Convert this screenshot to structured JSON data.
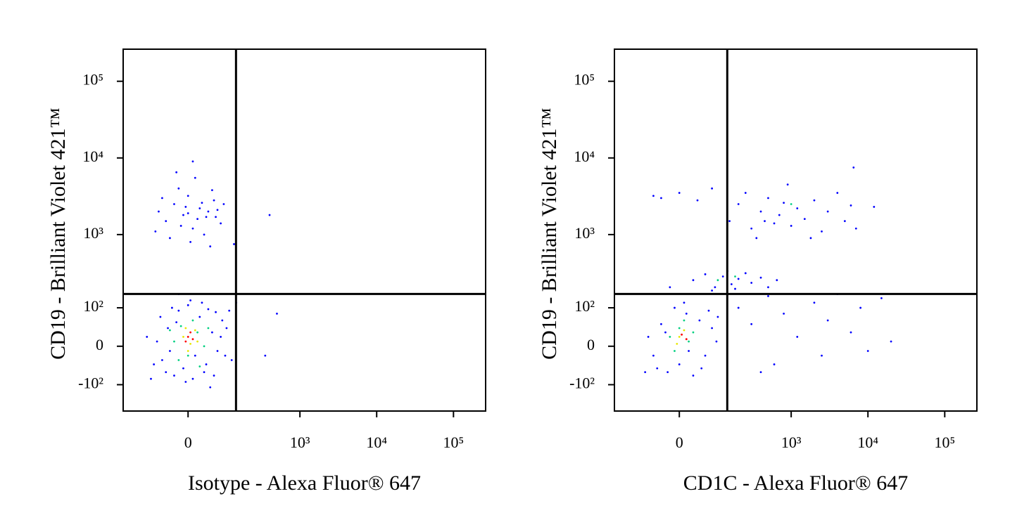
{
  "chart_data": [
    {
      "type": "scatter",
      "xlabel": "Isotype - Alexa Fluor® 647",
      "ylabel": "CD19 - Brilliant Violet 421™",
      "xlim": [
        -240,
        262144
      ],
      "ylim": [
        -240,
        262144
      ],
      "xticks": [
        0,
        {
          "value": 1000,
          "label": "10³"
        },
        {
          "value": 10000,
          "label": "10⁴"
        },
        {
          "value": 100000,
          "label": "10⁵"
        }
      ],
      "yticks": [
        {
          "value": -100,
          "label": "-10²"
        },
        0,
        {
          "value": 100,
          "label": "10²"
        },
        {
          "value": 1000,
          "label": "10³"
        },
        {
          "value": 10000,
          "label": "10⁴"
        },
        {
          "value": 100000,
          "label": "10⁵"
        }
      ],
      "gate": {
        "x": 139,
        "y": 161
      },
      "series": [
        {
          "color": "#0000ff",
          "x": [
            -60,
            -45,
            -30,
            -20,
            -10,
            0,
            10,
            25,
            40,
            55,
            70,
            85,
            95,
            -75,
            -50,
            -35,
            30,
            60,
            -5,
            45,
            80,
            -65,
            15,
            100,
            -85,
            35,
            -25,
            65,
            -40,
            5,
            -110,
            120,
            -20,
            50,
            110,
            -95,
            -50,
            -30,
            -10,
            0,
            10,
            25,
            40,
            60,
            80,
            -70,
            -40,
            -20,
            15,
            35,
            55,
            70,
            -60,
            5,
            30,
            -15,
            45,
            20,
            -5,
            -25,
            10,
            90,
            -80,
            50,
            0,
            65,
            400,
            130,
            500,
            350,
            140
          ],
          "y": [
            -30,
            40,
            -70,
            90,
            -50,
            110,
            -80,
            70,
            -40,
            30,
            -10,
            60,
            -20,
            10,
            -60,
            100,
            120,
            -70,
            -90,
            95,
            20,
            70,
            -20,
            40,
            -40,
            -60,
            55,
            85,
            -10,
            130,
            20,
            -30,
            160,
            -110,
            90,
            -80,
            1500,
            2500,
            1800,
            3200,
            1200,
            2200,
            1700,
            2800,
            1400,
            2000,
            900,
            4000,
            5500,
            1000,
            3800,
            2100,
            3000,
            800,
            2600,
            1300,
            2000,
            1600,
            2300,
            6500,
            9000,
            2500,
            1100,
            700,
            1900,
            1700,
            1800,
            750,
            80,
            -20,
            120
          ]
        },
        {
          "color": "#00d080",
          "x": [
            -30,
            -15,
            0,
            20,
            35,
            10,
            -20,
            25,
            -40,
            45
          ],
          "y": [
            10,
            45,
            -20,
            30,
            0,
            60,
            -30,
            -45,
            35,
            40
          ]
        },
        {
          "color": "#e8e800",
          "x": [
            -10,
            5,
            15,
            -5,
            20,
            0
          ],
          "y": [
            20,
            5,
            35,
            40,
            10,
            -10
          ]
        },
        {
          "color": "#ff0000",
          "x": [
            0,
            5,
            -5,
            10
          ],
          "y": [
            20,
            30,
            10,
            15
          ]
        }
      ]
    },
    {
      "type": "scatter",
      "xlabel": "CD1C - Alexa Fluor® 647",
      "ylabel": "CD19 - Brilliant Violet 421™",
      "xlim": [
        -240,
        262144
      ],
      "ylim": [
        -240,
        262144
      ],
      "xticks": [
        0,
        {
          "value": 1000,
          "label": "10³"
        },
        {
          "value": 10000,
          "label": "10⁴"
        },
        {
          "value": 100000,
          "label": "10⁵"
        }
      ],
      "yticks": [
        {
          "value": -100,
          "label": "-10²"
        },
        0,
        {
          "value": 100,
          "label": "10²"
        },
        {
          "value": 1000,
          "label": "10³"
        },
        {
          "value": 10000,
          "label": "10⁴"
        },
        {
          "value": 100000,
          "label": "10⁵"
        }
      ],
      "gate": {
        "x": 139,
        "y": 161
      },
      "series": [
        {
          "color": "#0000ff",
          "x": [
            -60,
            -40,
            -25,
            -10,
            0,
            15,
            30,
            45,
            60,
            80,
            95,
            -75,
            -50,
            20,
            70,
            -30,
            50,
            10,
            -85,
            100,
            30,
            60,
            90,
            120,
            160,
            200,
            250,
            300,
            400,
            500,
            650,
            80,
            140,
            -20,
            180,
            150,
            200,
            300,
            400,
            500,
            600,
            700,
            800,
            1000,
            1200,
            1500,
            2000,
            2500,
            3000,
            4000,
            5000,
            6000,
            7000,
            350,
            900,
            1800,
            450,
            250,
            12000,
            6500,
            200,
            300,
            500,
            800,
            1200,
            2000,
            3000,
            4000,
            6000,
            8000,
            10000,
            15000,
            20000,
            600,
            400,
            2500,
            -40,
            0,
            40,
            80,
            -60
          ],
          "y": [
            -20,
            50,
            -60,
            100,
            -40,
            80,
            -70,
            60,
            -20,
            40,
            10,
            20,
            -50,
            -10,
            90,
            30,
            -50,
            120,
            -60,
            70,
            250,
            300,
            200,
            280,
            220,
            260,
            310,
            230,
            270,
            200,
            250,
            180,
            330,
            200,
            190,
            1500,
            2500,
            1200,
            2000,
            3000,
            1400,
            1800,
            2600,
            1300,
            2200,
            1600,
            2800,
            1100,
            2000,
            3500,
            1500,
            2400,
            1200,
            900,
            4500,
            900,
            1500,
            3500,
            2300,
            7500,
            100,
            50,
            150,
            80,
            20,
            120,
            60,
            160,
            30,
            100,
            -10,
            140,
            10,
            -40,
            -60,
            -20,
            3000,
            3500,
            2800,
            4000,
            3200
          ]
        },
        {
          "color": "#00d080",
          "x": [
            -20,
            0,
            20,
            10,
            -10,
            30,
            100,
            180,
            1000
          ],
          "y": [
            20,
            40,
            10,
            60,
            -10,
            30,
            250,
            280,
            2500
          ]
        },
        {
          "color": "#e8e800",
          "x": [
            0,
            10,
            -5
          ],
          "y": [
            20,
            35,
            5
          ]
        },
        {
          "color": "#ff0000",
          "x": [
            5,
            15
          ],
          "y": [
            25,
            15
          ]
        }
      ]
    }
  ]
}
